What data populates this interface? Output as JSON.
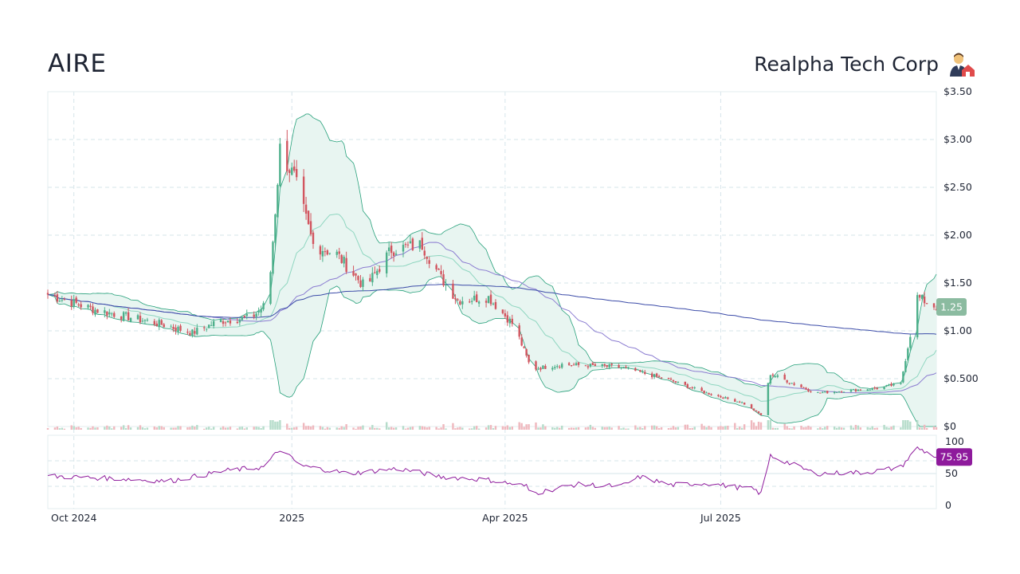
{
  "header": {
    "ticker": "AIRE",
    "company": "Realpha Tech Corp"
  },
  "colors": {
    "up": "#4caf8a",
    "down": "#d2555f",
    "band_line": "#26a07a",
    "band_fill": "#e8f5f1",
    "ma_short": "#8fd6c0",
    "ma_mid": "#8b7cd1",
    "ma_long": "#3b4ba8",
    "rsi": "#8e1a9c",
    "price_tag": "#8bbba0",
    "rsi_tag": "#8e1a9c",
    "grid": "#d6e4ea"
  },
  "chart_data": [
    {
      "type": "candlestick",
      "title": "",
      "price_axis": {
        "ylim": [
          0,
          3.5
        ],
        "ticks": [
          "$0",
          "$0.500",
          "$1.00",
          "$1.50",
          "$2.00",
          "$2.50",
          "$3.00",
          "$3.50"
        ]
      },
      "x_axis": {
        "start": "2024-09-20",
        "end": "2025-09-30",
        "ticks": [
          "Oct 2024",
          "2025",
          "Apr 2025",
          "Jul 2025"
        ]
      },
      "last_price_label": "1.25",
      "overlays": [
        "bollinger-upper",
        "bollinger-lower",
        "ma-20",
        "ma-50",
        "ma-200"
      ],
      "price_anchors": [
        [
          "2024-09-20",
          1.38
        ],
        [
          "2024-10-10",
          1.22
        ],
        [
          "2024-11-05",
          1.08
        ],
        [
          "2024-11-20",
          0.98
        ],
        [
          "2024-12-01",
          1.1
        ],
        [
          "2024-12-15",
          1.14
        ],
        [
          "2024-12-22",
          1.3
        ],
        [
          "2024-12-27",
          2.9
        ],
        [
          "2025-01-02",
          2.6
        ],
        [
          "2025-01-10",
          1.9
        ],
        [
          "2025-01-20",
          1.8
        ],
        [
          "2025-02-01",
          1.45
        ],
        [
          "2025-02-12",
          1.85
        ],
        [
          "2025-02-25",
          1.9
        ],
        [
          "2025-03-05",
          1.55
        ],
        [
          "2025-03-12",
          1.32
        ],
        [
          "2025-03-25",
          1.35
        ],
        [
          "2025-04-05",
          1.05
        ],
        [
          "2025-04-12",
          0.6
        ],
        [
          "2025-04-25",
          0.65
        ],
        [
          "2025-05-20",
          0.62
        ],
        [
          "2025-06-10",
          0.48
        ],
        [
          "2025-06-25",
          0.35
        ],
        [
          "2025-07-10",
          0.25
        ],
        [
          "2025-07-18",
          0.12
        ],
        [
          "2025-07-22",
          0.55
        ],
        [
          "2025-08-10",
          0.35
        ],
        [
          "2025-09-05",
          0.4
        ],
        [
          "2025-09-15",
          0.45
        ],
        [
          "2025-09-22",
          1.35
        ],
        [
          "2025-09-30",
          1.25
        ]
      ]
    },
    {
      "type": "line",
      "title": "",
      "series": [
        {
          "name": "",
          "indicator": "rsi"
        }
      ],
      "ylim": [
        0,
        100
      ],
      "ticks": [
        "0",
        "50",
        "100"
      ],
      "last_value_label": "75.95",
      "rsi_anchors": [
        [
          "2024-09-20",
          46
        ],
        [
          "2024-10-20",
          42
        ],
        [
          "2024-11-10",
          38
        ],
        [
          "2024-11-25",
          48
        ],
        [
          "2024-12-05",
          55
        ],
        [
          "2024-12-20",
          60
        ],
        [
          "2024-12-27",
          88
        ],
        [
          "2025-01-05",
          62
        ],
        [
          "2025-01-25",
          50
        ],
        [
          "2025-02-15",
          58
        ],
        [
          "2025-03-05",
          45
        ],
        [
          "2025-03-25",
          40
        ],
        [
          "2025-04-10",
          30
        ],
        [
          "2025-04-12",
          18
        ],
        [
          "2025-05-01",
          33
        ],
        [
          "2025-05-20",
          30
        ],
        [
          "2025-05-28",
          45
        ],
        [
          "2025-06-10",
          32
        ],
        [
          "2025-06-25",
          35
        ],
        [
          "2025-07-15",
          25
        ],
        [
          "2025-07-18",
          18
        ],
        [
          "2025-07-22",
          78
        ],
        [
          "2025-08-10",
          50
        ],
        [
          "2025-09-01",
          52
        ],
        [
          "2025-09-15",
          60
        ],
        [
          "2025-09-22",
          90
        ],
        [
          "2025-09-30",
          76
        ]
      ]
    }
  ]
}
